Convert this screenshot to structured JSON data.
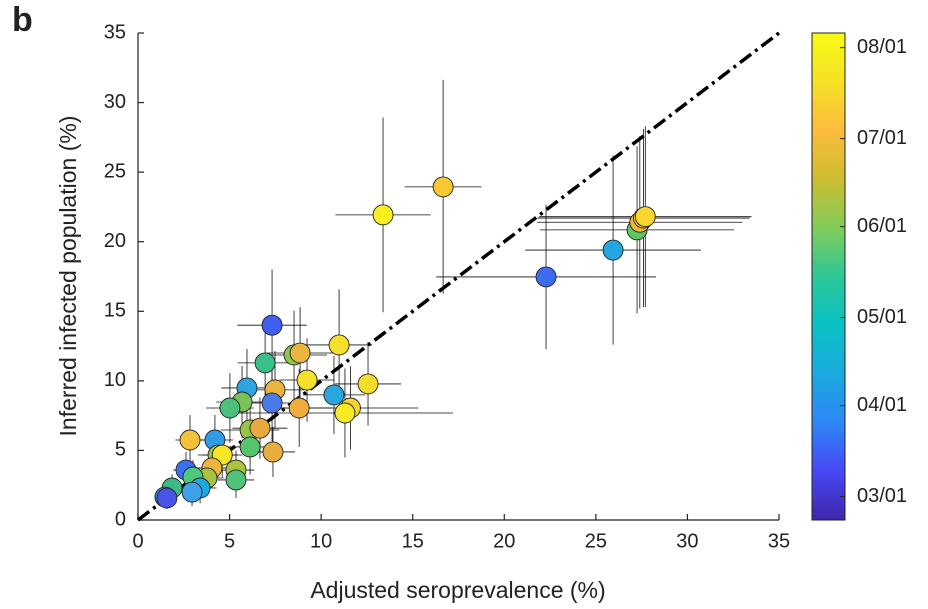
{
  "chart_data": {
    "type": "scatter",
    "panel_label": "b",
    "x_label": "Adjusted seroprevalence (%)",
    "y_label": "Inferred infected population (%)",
    "xlim": [
      0,
      35
    ],
    "ylim": [
      0,
      35
    ],
    "xticks": [
      0,
      5,
      10,
      15,
      20,
      25,
      30,
      35
    ],
    "yticks": [
      0,
      5,
      10,
      15,
      20,
      25,
      30,
      35
    ],
    "identity_line": true,
    "series": [
      {
        "x": [
          16.66,
          13.38,
          22.28,
          25.94,
          27.25,
          27.4,
          27.6,
          27.7,
          7.32,
          6.94,
          8.52,
          8.85,
          10.98,
          9.23,
          10.7,
          12.56,
          11.6,
          11.3,
          8.8,
          5.95,
          7.48,
          7.32,
          5.68,
          5.02,
          6.12,
          6.66,
          6.12,
          7.37,
          4.2,
          2.84,
          4.37,
          4.6,
          5.35,
          5.35,
          4.04,
          3.77,
          2.62,
          3.0,
          3.39,
          2.95,
          1.86,
          1.47,
          1.58
        ],
        "values": [
          23.94,
          21.93,
          17.47,
          19.4,
          20.85,
          21.4,
          21.7,
          21.8,
          14.0,
          11.29,
          11.86,
          12.0,
          12.58,
          10.06,
          8.99,
          9.78,
          8.05,
          7.69,
          8.05,
          9.49,
          9.35,
          8.41,
          8.48,
          8.05,
          6.47,
          6.6,
          5.25,
          4.89,
          5.75,
          5.75,
          4.67,
          4.67,
          3.59,
          2.88,
          3.74,
          3.02,
          3.59,
          3.09,
          2.3,
          2.0,
          2.3,
          1.65,
          1.58
        ],
        "xerr": [
          2.1,
          2.6,
          6.0,
          4.8,
          5.3,
          5.6,
          5.8,
          5.8,
          1.9,
          1.5,
          1.8,
          1.8,
          1.8,
          1.5,
          1.7,
          1.8,
          3.7,
          5.9,
          1.8,
          1.4,
          1.6,
          1.8,
          1.4,
          1.3,
          1.6,
          1.5,
          1.4,
          1.2,
          1.0,
          0.8,
          1.1,
          1.1,
          1.0,
          1.0,
          1.0,
          0.9,
          0.7,
          0.8,
          0.9,
          0.8,
          0.6,
          0.5,
          0.5
        ],
        "yerr": [
          7.7,
          7.0,
          5.2,
          6.8,
          6.0,
          6.2,
          6.4,
          6.5,
          4.0,
          3.0,
          3.2,
          3.3,
          4.0,
          3.0,
          2.8,
          3.0,
          3.0,
          3.2,
          2.8,
          2.8,
          2.8,
          2.8,
          2.6,
          2.5,
          2.2,
          2.2,
          2.0,
          1.8,
          1.8,
          1.8,
          1.6,
          1.6,
          1.4,
          1.3,
          1.4,
          1.3,
          1.3,
          1.2,
          1.1,
          1.0,
          1.0,
          0.8,
          0.8
        ],
        "colors": [
          "#f7c832",
          "#f9f01f",
          "#3d6cf0",
          "#25a6e0",
          "#5cc760",
          "#f3b63a",
          "#f8c934",
          "#fad62e",
          "#3f5ff0",
          "#3bbf8a",
          "#8ec54a",
          "#e8b540",
          "#f6e02a",
          "#f5e12a",
          "#2aa7e0",
          "#f2dd2a",
          "#f3d52e",
          "#f8ea22",
          "#f0ad3e",
          "#2ea4e0",
          "#ebb43c",
          "#4b7be8",
          "#7ac257",
          "#4cc07a",
          "#9ac446",
          "#e9a93c",
          "#55c46c",
          "#e8ad3f",
          "#2f9ee5",
          "#f4c23a",
          "#9cc341",
          "#f6e625",
          "#aac53b",
          "#52c27a",
          "#eeb440",
          "#a8c33c",
          "#3a6ff0",
          "#4dc77a",
          "#1ca9e6",
          "#3ea0e6",
          "#3bba85",
          "#2b8dec",
          "#4a55e8"
        ]
      }
    ],
    "colorbar": {
      "lim": [
        52,
        218
      ],
      "ticks": [
        {
          "value": 60,
          "label": "03/01"
        },
        {
          "value": 91,
          "label": "04/01"
        },
        {
          "value": 121,
          "label": "05/01"
        },
        {
          "value": 152,
          "label": "06/01"
        },
        {
          "value": 182,
          "label": "07/01"
        },
        {
          "value": 213,
          "label": "08/01"
        }
      ],
      "colormap": [
        "#3e26a8",
        "#4748f4",
        "#2e87f7",
        "#1aa9df",
        "#09c1c3",
        "#2ec797",
        "#81cc59",
        "#cdbd30",
        "#fcbc3d",
        "#f5e126",
        "#f9fb15"
      ]
    }
  }
}
